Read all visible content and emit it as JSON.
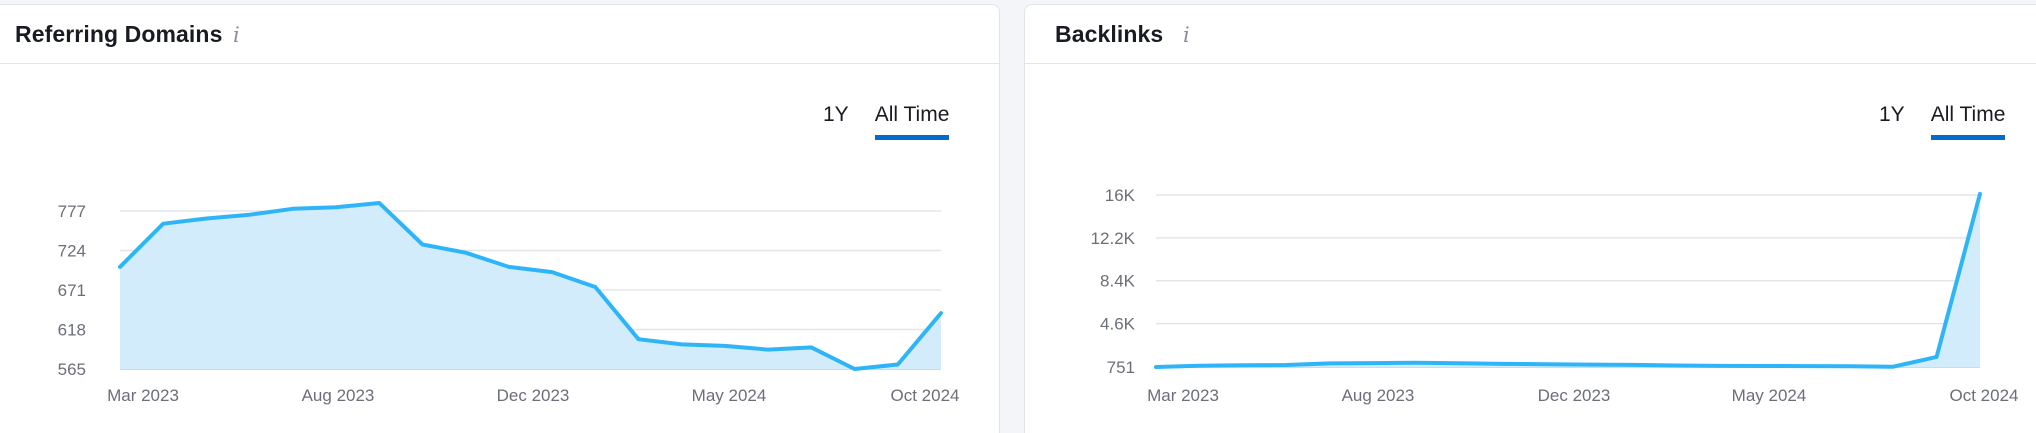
{
  "panels": [
    {
      "title": "Referring Domains",
      "info_icon": "info-icon",
      "tabs": [
        {
          "label": "1Y",
          "active": false
        },
        {
          "label": "All Time",
          "active": true
        }
      ]
    },
    {
      "title": "Backlinks",
      "info_icon": "info-icon",
      "tabs": [
        {
          "label": "1Y",
          "active": false
        },
        {
          "label": "All Time",
          "active": true
        }
      ]
    }
  ],
  "chart_data": [
    {
      "type": "area",
      "title": "Referring Domains",
      "xlabel": "",
      "ylabel": "",
      "x_tick_labels": [
        "Mar 2023",
        "Aug 2023",
        "Dec 2023",
        "May 2024",
        "Oct 2024"
      ],
      "y_tick_values": [
        565,
        618,
        671,
        724,
        777
      ],
      "y_tick_labels": [
        "565",
        "618",
        "671",
        "724",
        "777"
      ],
      "ylim": [
        565,
        777
      ],
      "grid": true,
      "series": [
        {
          "color": "#2fb5f7",
          "fill_color": "#d3ecfb",
          "values": [
            702,
            760,
            767,
            772,
            780,
            782,
            788,
            732,
            721,
            702,
            695,
            675,
            605,
            598,
            596,
            591,
            594,
            565,
            571,
            640
          ]
        }
      ]
    },
    {
      "type": "area",
      "title": "Backlinks",
      "xlabel": "",
      "ylabel": "",
      "x_tick_labels": [
        "Mar 2023",
        "Aug 2023",
        "Dec 2023",
        "May 2024",
        "Oct 2024"
      ],
      "y_tick_values": [
        751,
        4600,
        8400,
        12200,
        16000
      ],
      "y_tick_labels": [
        "751",
        "4.6K",
        "8.4K",
        "12.2K",
        "16K"
      ],
      "ylim": [
        751,
        16000
      ],
      "grid": true,
      "series": [
        {
          "color": "#2fb5f7",
          "fill_color": "#d3ecfb",
          "values": [
            751,
            870,
            900,
            930,
            1070,
            1100,
            1120,
            1080,
            1030,
            1000,
            960,
            940,
            880,
            850,
            840,
            830,
            820,
            780,
            1650,
            16100
          ]
        }
      ]
    }
  ]
}
